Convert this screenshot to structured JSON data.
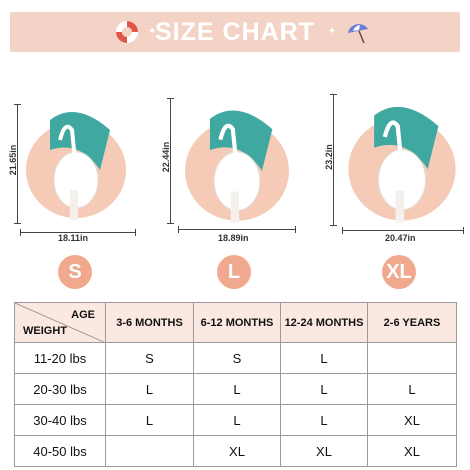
{
  "banner": {
    "title": "SIZE CHART"
  },
  "products": [
    {
      "size": "S",
      "height": "21.65in",
      "width": "18.11in"
    },
    {
      "size": "L",
      "height": "22.44in",
      "width": "18.89in"
    },
    {
      "size": "XL",
      "height": "23.2in",
      "width": "20.47in"
    }
  ],
  "colors": {
    "banner": "#f3d3c6",
    "badge": "#f0a98e",
    "float_pink": "#f5cbb8",
    "float_teal": "#3fa9a1",
    "header_bg": "#fbe9e1"
  },
  "table": {
    "corner_top": "AGE",
    "corner_bottom": "WEIGHT",
    "columns": [
      "3-6 MONTHS",
      "6-12 MONTHS",
      "12-24 MONTHS",
      "2-6 YEARS"
    ],
    "rows": [
      {
        "weight": "11-20 lbs",
        "cells": [
          "S",
          "S",
          "L",
          ""
        ]
      },
      {
        "weight": "20-30 lbs",
        "cells": [
          "L",
          "L",
          "L",
          "L"
        ]
      },
      {
        "weight": "30-40 lbs",
        "cells": [
          "L",
          "L",
          "L",
          "XL"
        ]
      },
      {
        "weight": "40-50 lbs",
        "cells": [
          "",
          "XL",
          "XL",
          "XL"
        ]
      }
    ]
  }
}
